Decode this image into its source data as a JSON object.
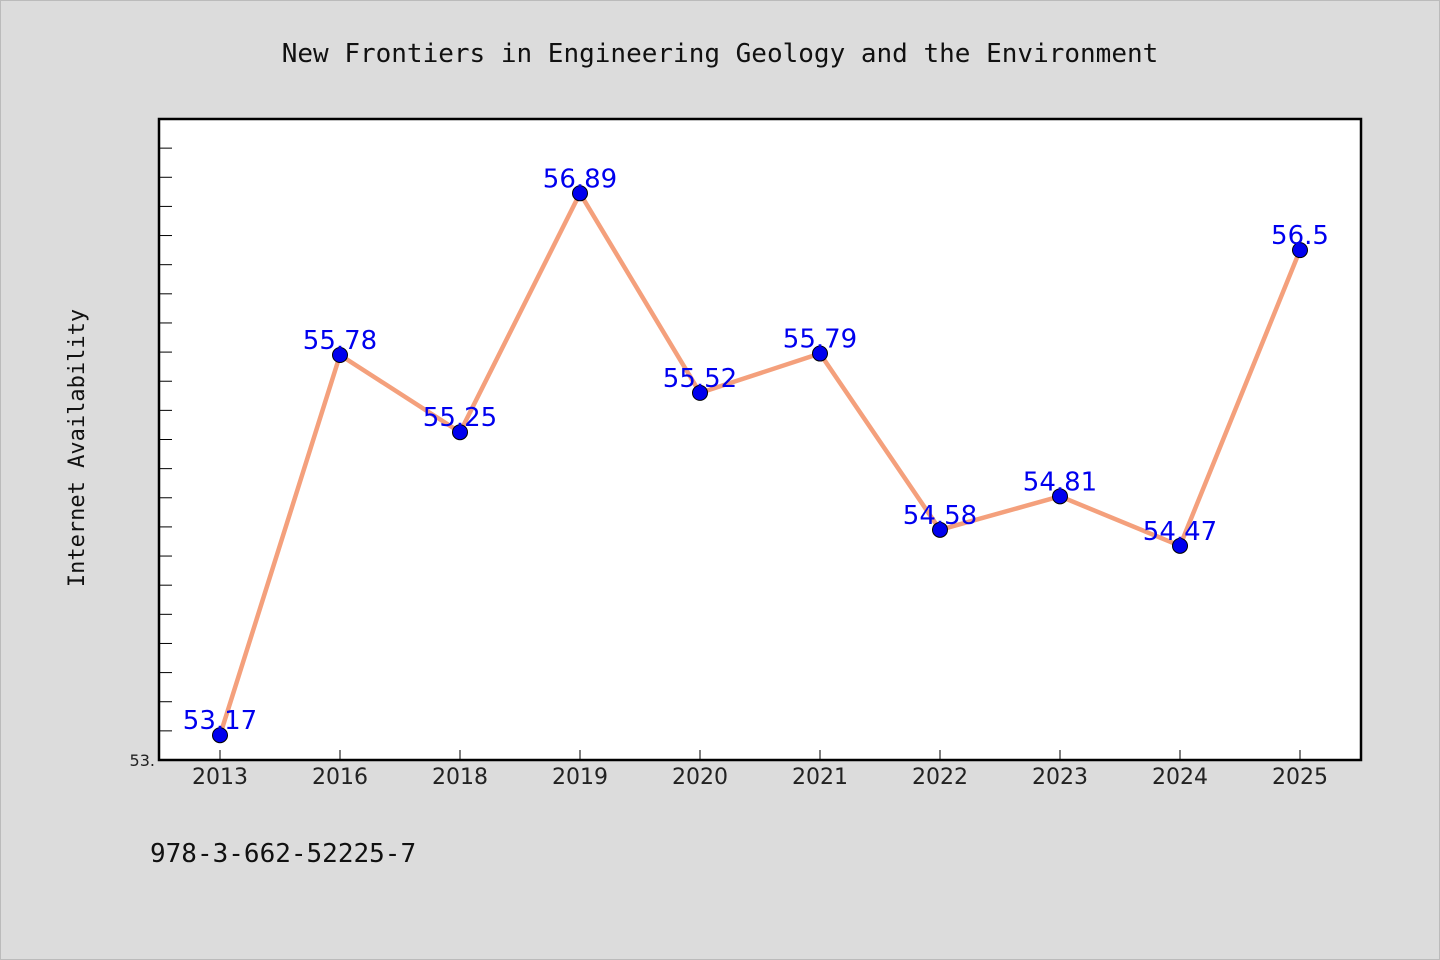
{
  "chart_data": {
    "type": "line",
    "title": "New Frontiers in Engineering Geology and the Environment",
    "xlabel": "",
    "ylabel": "Internet Availability",
    "categories": [
      "2013",
      "2016",
      "2018",
      "2019",
      "2020",
      "2021",
      "2022",
      "2023",
      "2024",
      "2025"
    ],
    "series": [
      {
        "values": [
          53.17,
          55.78,
          55.25,
          56.89,
          55.52,
          55.79,
          54.58,
          54.81,
          54.47,
          56.5
        ],
        "labels": [
          "53.17",
          "55.78",
          "55.25",
          "56.89",
          "55.52",
          "55.79",
          "54.58",
          "54.81",
          "54.47",
          "56.5"
        ]
      }
    ],
    "ylim": [
      53.0,
      57.4
    ],
    "y_tick_labels": [
      "53."
    ],
    "grid": false,
    "legend": "none",
    "line_color": "#f4a07c",
    "marker_color": "#0000ee",
    "label_color": "#0000ee"
  },
  "footnote": "978-3-662-52225-7"
}
